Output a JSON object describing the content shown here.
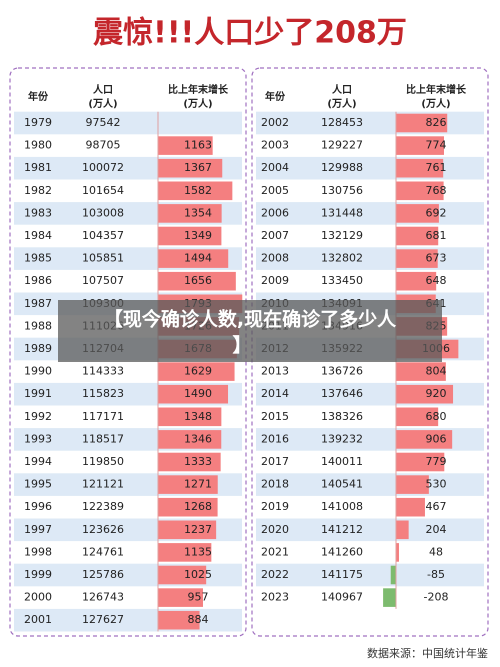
{
  "header": {
    "title": "震惊!!!人口少了208万"
  },
  "tables": [
    {
      "columns": [
        {
          "name": "年份"
        },
        {
          "name": "人口",
          "unit": "(万人)"
        },
        {
          "name": "比上年末增长",
          "unit": "(万人)"
        }
      ],
      "rows": [
        [
          1979,
          97542,
          null
        ],
        [
          1980,
          98705,
          1163
        ],
        [
          1981,
          100072,
          1367
        ],
        [
          1982,
          101654,
          1582
        ],
        [
          1983,
          103008,
          1354
        ],
        [
          1984,
          104357,
          1349
        ],
        [
          1985,
          105851,
          1494
        ],
        [
          1986,
          107507,
          1656
        ],
        [
          1987,
          109300,
          1793
        ],
        [
          1988,
          111026,
          1726
        ],
        [
          1989,
          112704,
          1678
        ],
        [
          1990,
          114333,
          1629
        ],
        [
          1991,
          115823,
          1490
        ],
        [
          1992,
          117171,
          1348
        ],
        [
          1993,
          118517,
          1346
        ],
        [
          1994,
          119850,
          1333
        ],
        [
          1995,
          121121,
          1271
        ],
        [
          1996,
          122389,
          1268
        ],
        [
          1997,
          123626,
          1237
        ],
        [
          1998,
          124761,
          1135
        ],
        [
          1999,
          125786,
          1025
        ],
        [
          2000,
          126743,
          957
        ],
        [
          2001,
          127627,
          884
        ]
      ]
    },
    {
      "columns": [
        {
          "name": "年份"
        },
        {
          "name": "人口",
          "unit": "(万人)"
        },
        {
          "name": "比上年末增长",
          "unit": "(万人)"
        }
      ],
      "rows": [
        [
          2002,
          128453,
          826
        ],
        [
          2003,
          129227,
          774
        ],
        [
          2004,
          129988,
          761
        ],
        [
          2005,
          130756,
          768
        ],
        [
          2006,
          131448,
          692
        ],
        [
          2007,
          132129,
          681
        ],
        [
          2008,
          132802,
          673
        ],
        [
          2009,
          133450,
          648
        ],
        [
          2010,
          134091,
          641
        ],
        [
          2011,
          134916,
          825
        ],
        [
          2012,
          135922,
          1006
        ],
        [
          2013,
          136726,
          804
        ],
        [
          2014,
          137646,
          920
        ],
        [
          2015,
          138326,
          680
        ],
        [
          2016,
          139232,
          906
        ],
        [
          2017,
          140011,
          779
        ],
        [
          2018,
          140541,
          530
        ],
        [
          2019,
          141008,
          467
        ],
        [
          2020,
          141212,
          204
        ],
        [
          2021,
          141260,
          48
        ],
        [
          2022,
          141175,
          -85
        ],
        [
          2023,
          140967,
          -208
        ]
      ]
    }
  ],
  "overlay": {
    "line1": "【现今确诊人数,现在确诊了多少人",
    "line2": "】"
  },
  "footer": {
    "source": "数据来源：中国统计年鉴"
  }
}
